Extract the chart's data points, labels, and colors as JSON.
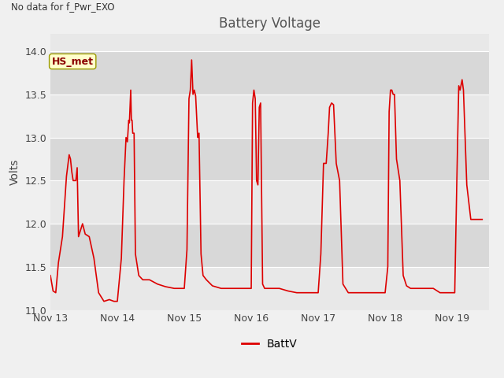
{
  "title": "Battery Voltage",
  "no_data_label": "No data for f_Pwr_EXO",
  "hs_met_label": "HS_met",
  "ylabel": "Volts",
  "legend_label": "BattV",
  "ylim": [
    11.0,
    14.2
  ],
  "yticks": [
    11.0,
    11.5,
    12.0,
    12.5,
    13.0,
    13.5,
    14.0
  ],
  "xtick_labels": [
    "Nov 13",
    "Nov 14",
    "Nov 15",
    "Nov 16",
    "Nov 17",
    "Nov 18",
    "Nov 19"
  ],
  "fig_bg_color": "#f0f0f0",
  "plot_bg_color": "#e8e8e8",
  "band_color": "#d8d8d8",
  "line_color": "#dd0000",
  "title_color": "#555555",
  "grid_color": "#ffffff",
  "segments": [
    [
      [
        0.0,
        11.4
      ],
      [
        0.04,
        11.22
      ],
      [
        0.08,
        11.2
      ],
      [
        0.12,
        11.55
      ],
      [
        0.18,
        11.85
      ],
      [
        0.24,
        12.55
      ],
      [
        0.28,
        12.8
      ],
      [
        0.3,
        12.75
      ],
      [
        0.32,
        12.6
      ],
      [
        0.34,
        12.5
      ],
      [
        0.38,
        12.5
      ],
      [
        0.4,
        12.65
      ],
      [
        0.42,
        11.85
      ],
      [
        0.44,
        11.9
      ],
      [
        0.48,
        12.0
      ],
      [
        0.52,
        11.88
      ],
      [
        0.58,
        11.85
      ],
      [
        0.65,
        11.6
      ],
      [
        0.72,
        11.2
      ],
      [
        0.8,
        11.1
      ],
      [
        0.88,
        11.12
      ],
      [
        0.95,
        11.1
      ],
      [
        1.0,
        11.1
      ]
    ],
    [
      [
        1.0,
        11.1
      ],
      [
        1.06,
        11.6
      ],
      [
        1.1,
        12.5
      ],
      [
        1.13,
        13.0
      ],
      [
        1.15,
        12.95
      ],
      [
        1.17,
        13.2
      ],
      [
        1.18,
        13.17
      ],
      [
        1.2,
        13.55
      ],
      [
        1.21,
        13.2
      ],
      [
        1.22,
        13.2
      ],
      [
        1.23,
        13.05
      ],
      [
        1.25,
        13.05
      ],
      [
        1.27,
        11.65
      ],
      [
        1.32,
        11.4
      ],
      [
        1.38,
        11.35
      ],
      [
        1.48,
        11.35
      ],
      [
        1.6,
        11.3
      ],
      [
        1.72,
        11.27
      ],
      [
        1.85,
        11.25
      ],
      [
        2.0,
        11.25
      ]
    ],
    [
      [
        2.0,
        11.25
      ],
      [
        2.04,
        11.7
      ],
      [
        2.07,
        13.45
      ],
      [
        2.09,
        13.55
      ],
      [
        2.11,
        13.9
      ],
      [
        2.13,
        13.5
      ],
      [
        2.15,
        13.55
      ],
      [
        2.17,
        13.48
      ],
      [
        2.2,
        13.0
      ],
      [
        2.22,
        13.05
      ],
      [
        2.25,
        11.65
      ],
      [
        2.28,
        11.4
      ],
      [
        2.33,
        11.35
      ],
      [
        2.42,
        11.28
      ],
      [
        2.55,
        11.25
      ],
      [
        2.68,
        11.25
      ],
      [
        2.82,
        11.25
      ],
      [
        2.92,
        11.25
      ],
      [
        3.0,
        11.25
      ]
    ],
    [
      [
        3.0,
        11.25
      ],
      [
        3.02,
        13.4
      ],
      [
        3.04,
        13.55
      ],
      [
        3.06,
        13.45
      ],
      [
        3.08,
        12.5
      ],
      [
        3.1,
        12.45
      ],
      [
        3.12,
        13.35
      ],
      [
        3.14,
        13.4
      ],
      [
        3.17,
        11.3
      ],
      [
        3.2,
        11.25
      ],
      [
        3.3,
        11.25
      ],
      [
        3.42,
        11.25
      ],
      [
        3.55,
        11.22
      ],
      [
        3.68,
        11.2
      ],
      [
        3.82,
        11.2
      ],
      [
        3.92,
        11.2
      ],
      [
        4.0,
        11.2
      ]
    ],
    [
      [
        4.0,
        11.2
      ],
      [
        4.04,
        11.65
      ],
      [
        4.08,
        12.7
      ],
      [
        4.12,
        12.7
      ],
      [
        4.15,
        13.05
      ],
      [
        4.17,
        13.35
      ],
      [
        4.2,
        13.4
      ],
      [
        4.23,
        13.38
      ],
      [
        4.27,
        12.7
      ],
      [
        4.32,
        12.5
      ],
      [
        4.37,
        11.3
      ],
      [
        4.45,
        11.2
      ],
      [
        4.55,
        11.2
      ],
      [
        4.68,
        11.2
      ],
      [
        4.8,
        11.2
      ],
      [
        4.9,
        11.2
      ],
      [
        5.0,
        11.2
      ]
    ],
    [
      [
        5.0,
        11.2
      ],
      [
        5.04,
        11.5
      ],
      [
        5.06,
        13.3
      ],
      [
        5.08,
        13.55
      ],
      [
        5.1,
        13.55
      ],
      [
        5.12,
        13.5
      ],
      [
        5.14,
        13.5
      ],
      [
        5.17,
        12.75
      ],
      [
        5.22,
        12.5
      ],
      [
        5.27,
        11.4
      ],
      [
        5.32,
        11.28
      ],
      [
        5.38,
        11.25
      ],
      [
        5.48,
        11.25
      ],
      [
        5.6,
        11.25
      ],
      [
        5.72,
        11.25
      ],
      [
        5.82,
        11.2
      ],
      [
        5.92,
        11.2
      ],
      [
        6.0,
        11.2
      ]
    ],
    [
      [
        6.0,
        11.2
      ],
      [
        6.04,
        11.2
      ],
      [
        6.07,
        12.45
      ],
      [
        6.1,
        13.6
      ],
      [
        6.12,
        13.55
      ],
      [
        6.15,
        13.67
      ],
      [
        6.17,
        13.55
      ],
      [
        6.22,
        12.45
      ],
      [
        6.28,
        12.05
      ],
      [
        6.35,
        12.05
      ],
      [
        6.45,
        12.05
      ]
    ]
  ]
}
